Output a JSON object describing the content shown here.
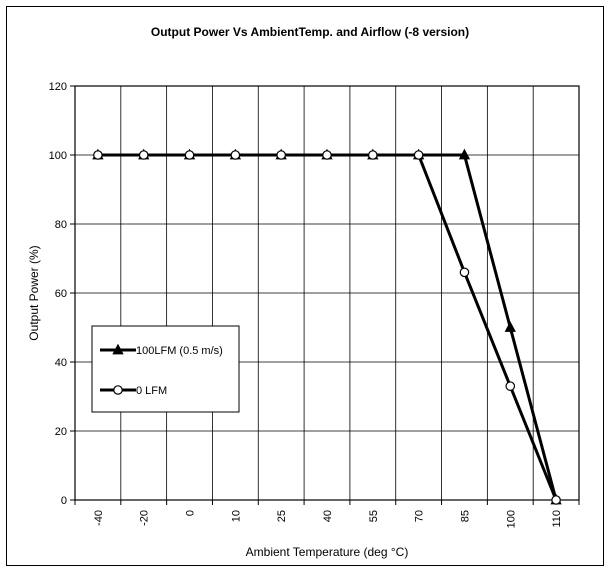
{
  "chart_data": {
    "type": "line",
    "title": "Output Power Vs AmbientTemp. and Airflow (-8 version)",
    "xlabel": "Ambient Temperature (deg °C)",
    "ylabel": "Output Power (%)",
    "categories": [
      "-40",
      "-20",
      "0",
      "10",
      "25",
      "40",
      "55",
      "70",
      "85",
      "100",
      "110"
    ],
    "ylim": [
      0,
      120
    ],
    "yticks": [
      "0",
      "20",
      "40",
      "60",
      "80",
      "100",
      "120"
    ],
    "grid": true,
    "legend_position": "left-middle",
    "series": [
      {
        "name": "100LFM (0.5 m/s)",
        "marker": "triangle",
        "values": [
          100,
          100,
          100,
          100,
          100,
          100,
          100,
          100,
          100,
          50,
          0
        ]
      },
      {
        "name": "0 LFM",
        "marker": "circle",
        "values": [
          100,
          100,
          100,
          100,
          100,
          100,
          100,
          100,
          66,
          33,
          0
        ]
      }
    ]
  }
}
